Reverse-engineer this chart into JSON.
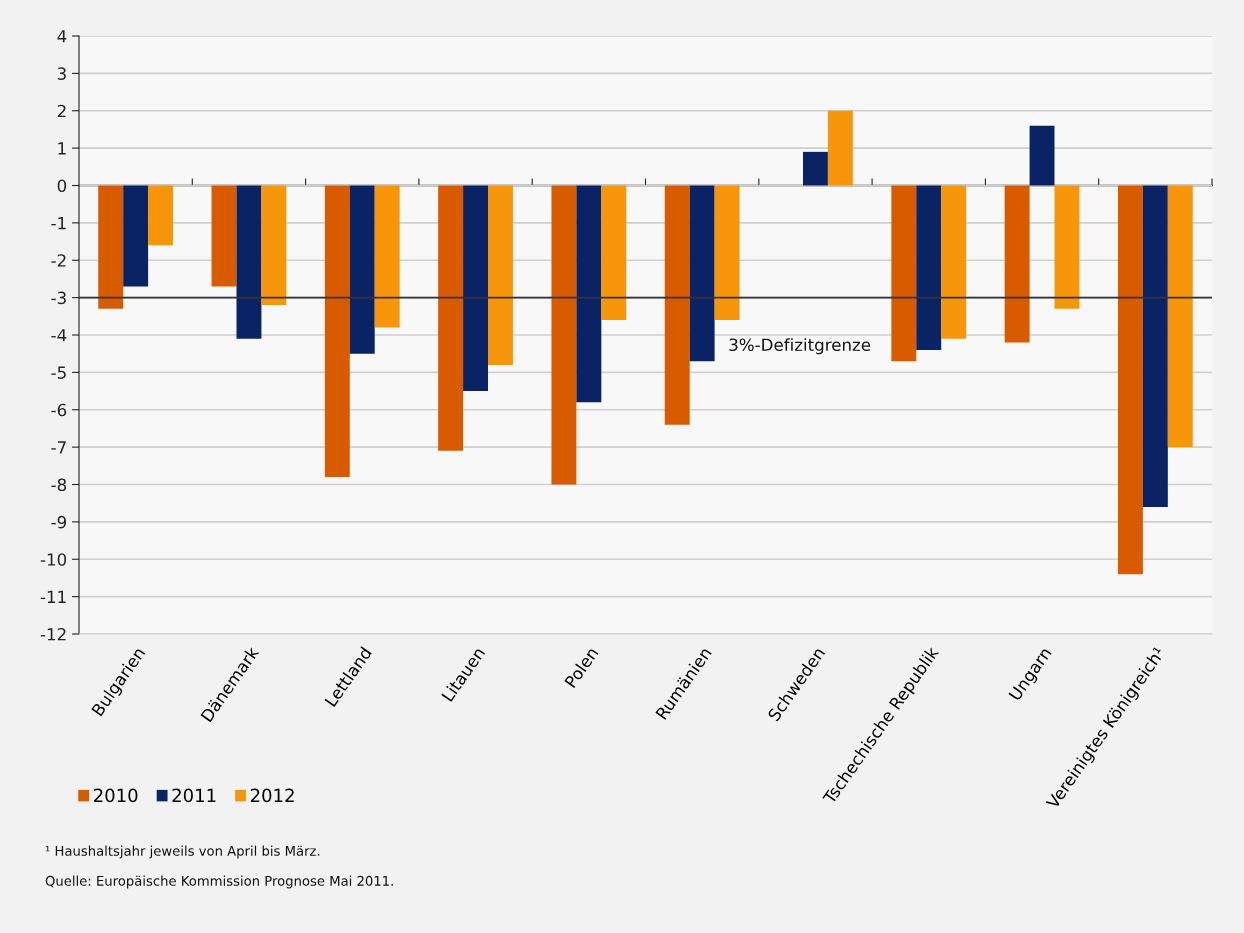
{
  "chart_data": {
    "type": "bar",
    "categories": [
      "Bulgarien",
      "Dänemark",
      "Lettland",
      "Litauen",
      "Polen",
      "Rumänien",
      "Schweden",
      "Tschechische Republik",
      "Ungarn",
      "Vereinigtes Königreich¹"
    ],
    "series": [
      {
        "name": "2010",
        "color": "#d95b00",
        "values": [
          -3.3,
          -2.7,
          -7.8,
          -7.1,
          -8.0,
          -6.4,
          null,
          -4.7,
          -4.2,
          -10.4
        ]
      },
      {
        "name": "2011",
        "color": "#0a2365",
        "values": [
          -2.7,
          -4.1,
          -4.5,
          -5.5,
          -5.8,
          -4.7,
          0.9,
          -4.4,
          1.6,
          -8.6
        ]
      },
      {
        "name": "2012",
        "color": "#f7960a",
        "values": [
          -1.6,
          -3.2,
          -3.8,
          -4.8,
          -3.6,
          -3.6,
          2.0,
          -4.1,
          -3.3,
          -7.0
        ]
      }
    ],
    "ylim": [
      -12,
      4
    ],
    "yticks": [
      -12,
      -11,
      -10,
      -9,
      -8,
      -7,
      -6,
      -5,
      -4,
      -3,
      -2,
      -1,
      0,
      1,
      2,
      3,
      4
    ],
    "ref_lines": [
      {
        "axis": "y",
        "value": -3,
        "label": "3%-Defizitgrenze",
        "color": "#333333"
      }
    ],
    "grid": "y",
    "legend": "bottom left",
    "annotations": [
      "¹ Haushaltsjahr jeweils von April bis März.",
      "Quelle: Europäische Kommission Prognose Mai 2011."
    ]
  }
}
